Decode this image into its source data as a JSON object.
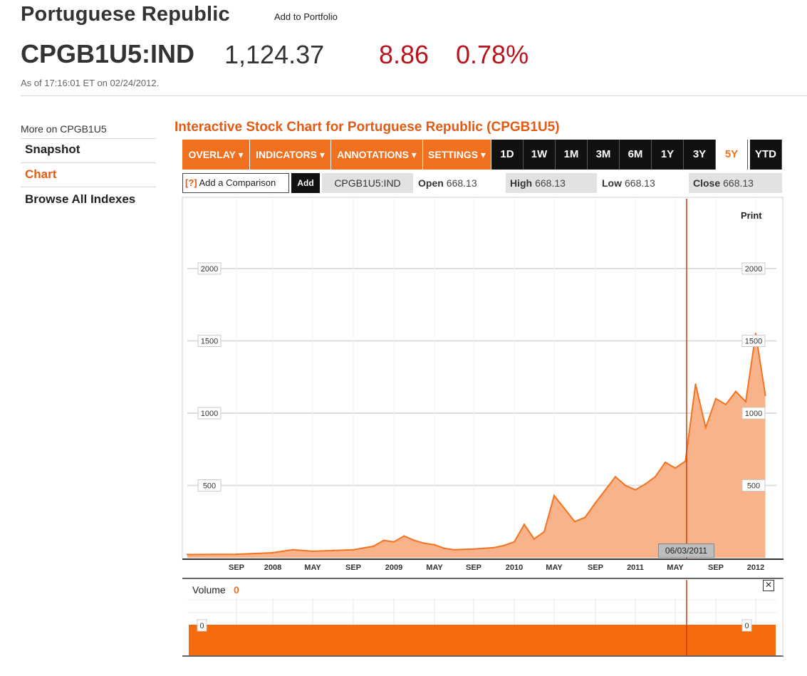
{
  "header": {
    "company": "Portuguese Republic",
    "add_portfolio": "Add to Portfolio",
    "ticker": "CPGB1U5:IND",
    "price": "1,124.37",
    "change": "8.86",
    "change_pct": "0.78%",
    "as_of": "As of 17:16:01 ET on 02/24/2012."
  },
  "sidebar": {
    "title": "More on CPGB1U5",
    "items": [
      {
        "label": "Snapshot"
      },
      {
        "label": "Chart"
      },
      {
        "label": "Browse All Indexes"
      }
    ]
  },
  "chart_header": "Interactive Stock Chart for Portuguese Republic (CPGB1U5)",
  "toolbar": {
    "menus": [
      "OVERLAY ▾",
      "INDICATORS ▾",
      "ANNOTATIONS ▾",
      "SETTINGS ▾"
    ],
    "ranges": [
      "1D",
      "1W",
      "1M",
      "3M",
      "6M",
      "1Y",
      "3Y",
      "5Y",
      "YTD"
    ],
    "active_range": "5Y"
  },
  "info_row": {
    "comparison_icon": "[?]",
    "comparison_label": "Add a Comparison",
    "add_button": "Add",
    "symbol": "CPGB1U5:IND",
    "open_label": "Open",
    "open_value": "668.13",
    "high_label": "High",
    "high_value": "668.13",
    "low_label": "Low",
    "low_value": "668.13",
    "close_label": "Close",
    "close_value": "668.13"
  },
  "print_label": "Print",
  "volume": {
    "label": "Volume",
    "value": "0",
    "close_icon": "✕"
  },
  "crosshair_date": "06/03/2011",
  "colors": {
    "accent": "#f0701f",
    "negative": "#b8141b",
    "area_fill": "#f9b38a",
    "line": "#f27320",
    "crosshair": "#c2410c"
  },
  "chart_data": {
    "type": "area",
    "x_tick_labels": [
      "SEP",
      "2008",
      "MAY",
      "SEP",
      "2009",
      "MAY",
      "SEP",
      "2010",
      "MAY",
      "SEP",
      "2011",
      "MAY",
      "SEP",
      "2012"
    ],
    "y_ticks": [
      500,
      1000,
      1500,
      2000
    ],
    "ylim": [
      0,
      2500
    ],
    "grid": true,
    "crosshair": {
      "date": "06/03/2011",
      "open": 668.13,
      "high": 668.13,
      "low": 668.13,
      "close": 668.13
    },
    "series": [
      {
        "values": [
          {
            "x": "2007-06",
            "y": 22
          },
          {
            "x": "2007-09",
            "y": 24
          },
          {
            "x": "2008-01",
            "y": 35
          },
          {
            "x": "2008-03",
            "y": 55
          },
          {
            "x": "2008-05",
            "y": 45
          },
          {
            "x": "2008-07",
            "y": 50
          },
          {
            "x": "2008-09",
            "y": 55
          },
          {
            "x": "2008-11",
            "y": 80
          },
          {
            "x": "2008-12",
            "y": 120
          },
          {
            "x": "2009-01",
            "y": 110
          },
          {
            "x": "2009-02",
            "y": 150
          },
          {
            "x": "2009-03",
            "y": 120
          },
          {
            "x": "2009-04",
            "y": 100
          },
          {
            "x": "2009-05",
            "y": 90
          },
          {
            "x": "2009-06",
            "y": 65
          },
          {
            "x": "2009-07",
            "y": 55
          },
          {
            "x": "2009-09",
            "y": 60
          },
          {
            "x": "2009-11",
            "y": 70
          },
          {
            "x": "2009-12",
            "y": 85
          },
          {
            "x": "2010-01",
            "y": 110
          },
          {
            "x": "2010-02",
            "y": 230
          },
          {
            "x": "2010-03",
            "y": 130
          },
          {
            "x": "2010-04",
            "y": 180
          },
          {
            "x": "2010-05",
            "y": 430
          },
          {
            "x": "2010-06",
            "y": 340
          },
          {
            "x": "2010-07",
            "y": 250
          },
          {
            "x": "2010-08",
            "y": 280
          },
          {
            "x": "2010-09",
            "y": 380
          },
          {
            "x": "2010-10",
            "y": 470
          },
          {
            "x": "2010-11",
            "y": 560
          },
          {
            "x": "2010-12",
            "y": 500
          },
          {
            "x": "2011-01",
            "y": 470
          },
          {
            "x": "2011-02",
            "y": 510
          },
          {
            "x": "2011-03",
            "y": 560
          },
          {
            "x": "2011-04",
            "y": 660
          },
          {
            "x": "2011-05",
            "y": 620
          },
          {
            "x": "2011-06",
            "y": 668
          },
          {
            "x": "2011-07",
            "y": 1200
          },
          {
            "x": "2011-08",
            "y": 900
          },
          {
            "x": "2011-09",
            "y": 1100
          },
          {
            "x": "2011-10",
            "y": 1060
          },
          {
            "x": "2011-11",
            "y": 1150
          },
          {
            "x": "2011-12",
            "y": 1080
          },
          {
            "x": "2012-01",
            "y": 1550
          },
          {
            "x": "2012-02",
            "y": 1124
          }
        ]
      }
    ],
    "volume": {
      "values": [
        0
      ],
      "y_ticks": [
        0
      ]
    }
  }
}
